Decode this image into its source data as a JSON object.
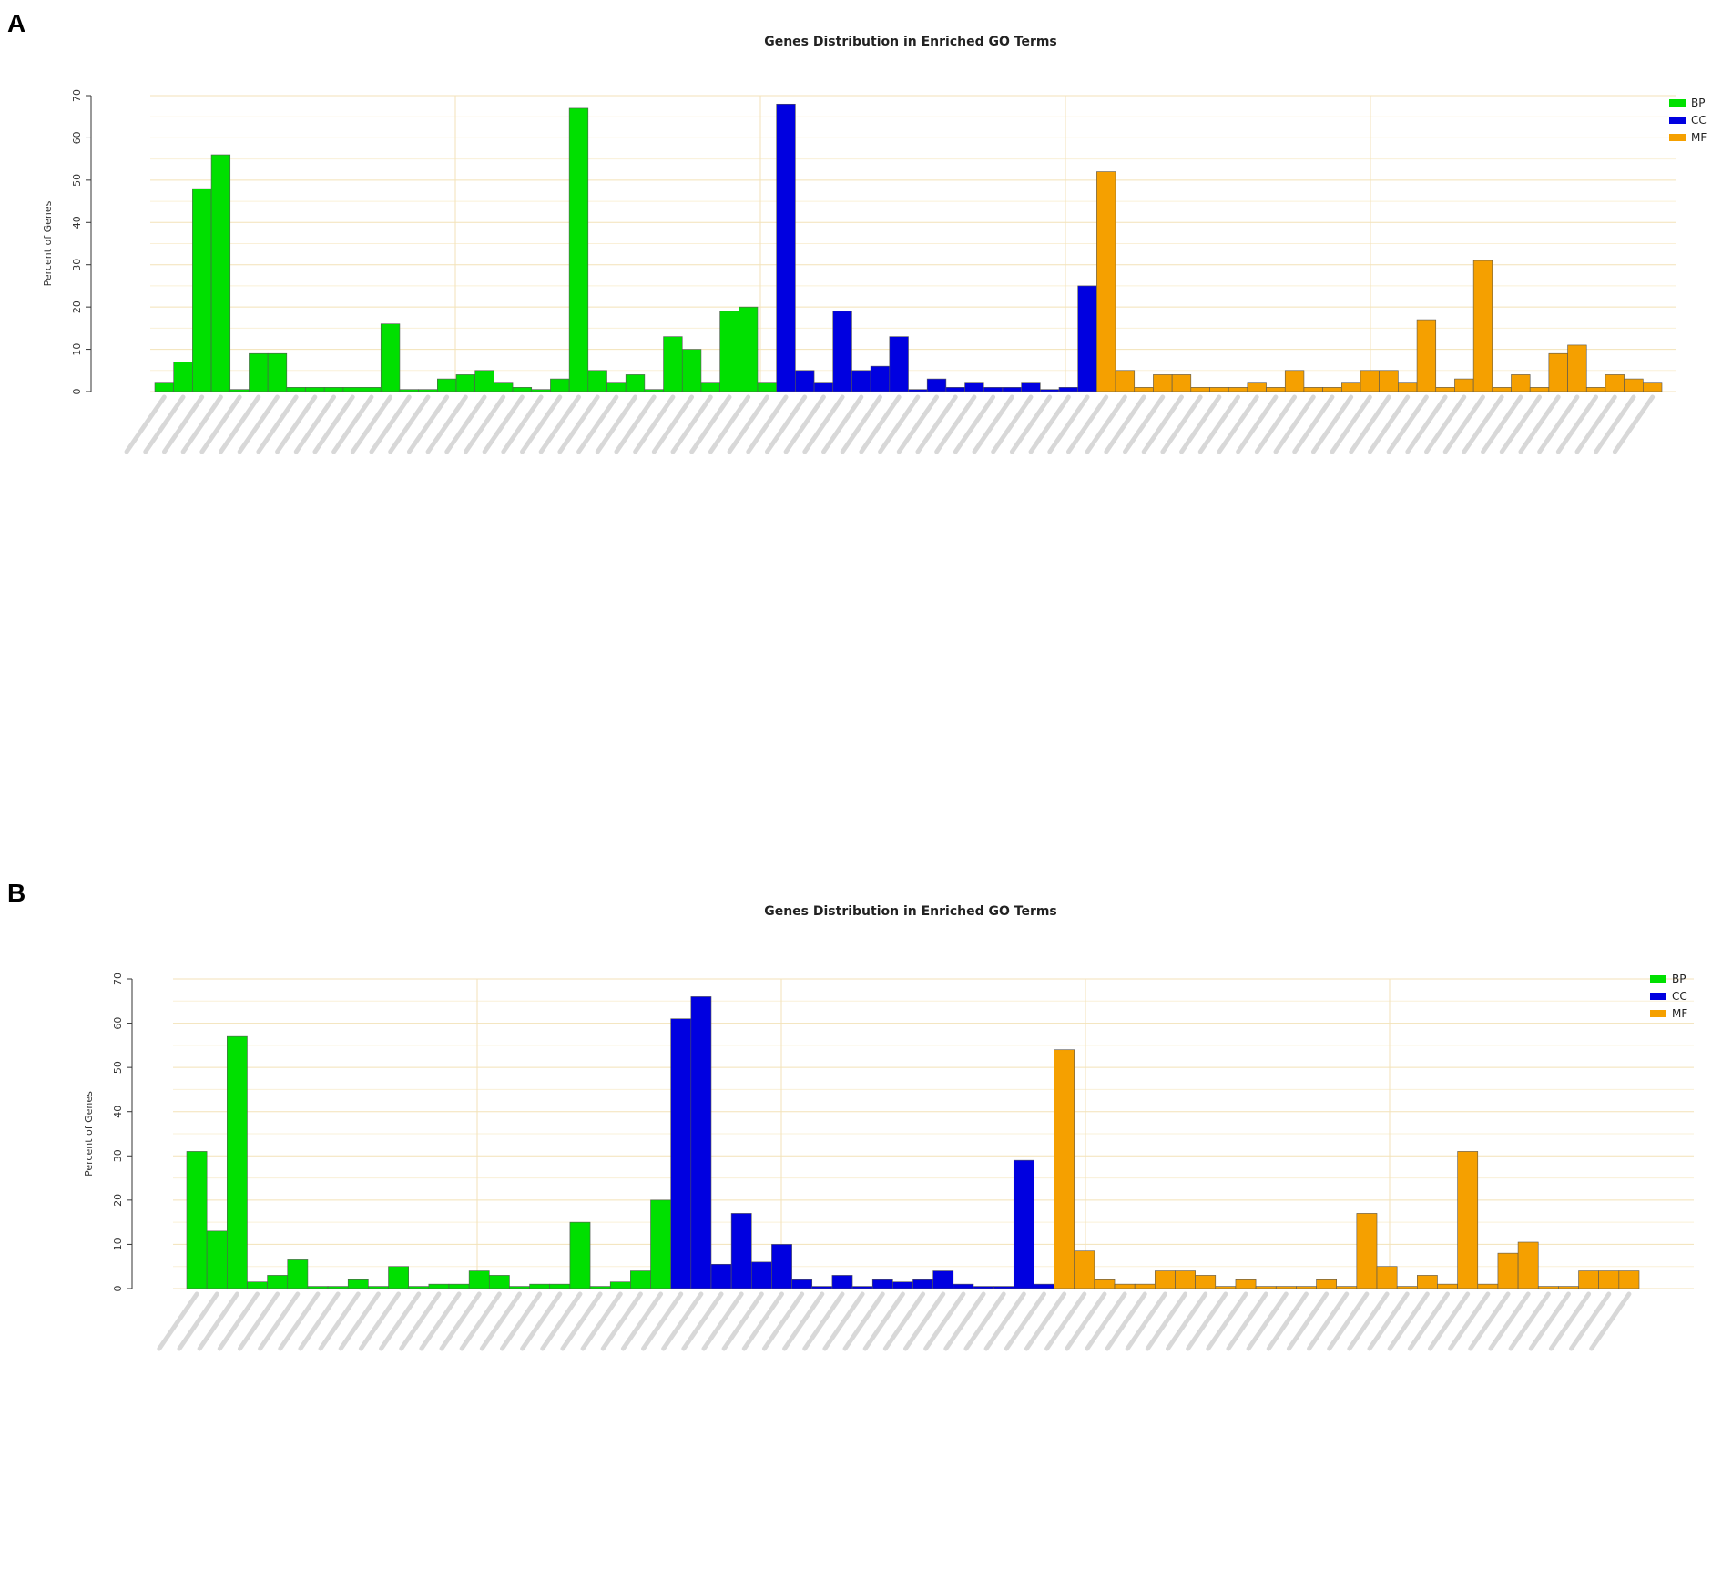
{
  "panels": [
    {
      "letter": "A"
    },
    {
      "letter": "B"
    }
  ],
  "chart_data": [
    {
      "type": "bar",
      "title": "Genes Distribution in Enriched GO Terms",
      "ylabel": "Percent of Genes",
      "ylim": [
        0,
        70
      ],
      "yticks": [
        0,
        10,
        20,
        30,
        40,
        50,
        60,
        70
      ],
      "grid": true,
      "legend_position": "top-right",
      "colors": {
        "BP": "#00e000",
        "CC": "#0000e0",
        "MF": "#f5a000"
      },
      "series": [
        {
          "name": "BP",
          "values": [
            2,
            7,
            48,
            56,
            0.5,
            9,
            9,
            1,
            1,
            1,
            1,
            1,
            16,
            0.5,
            0.5,
            3,
            4,
            5,
            2,
            1,
            0.5,
            3,
            67,
            5,
            2,
            4,
            0.5,
            13,
            10,
            2,
            19,
            20,
            2
          ]
        },
        {
          "name": "CC",
          "values": [
            68,
            5,
            2,
            19,
            5,
            6,
            13,
            0.5,
            3,
            1,
            2,
            1,
            1,
            2,
            0.5,
            1,
            25
          ]
        },
        {
          "name": "MF",
          "values": [
            52,
            5,
            1,
            4,
            4,
            1,
            1,
            1,
            2,
            1,
            5,
            1,
            1,
            2,
            5,
            5,
            2,
            17,
            1,
            3,
            31,
            1,
            4,
            1,
            9,
            11,
            1,
            4,
            3,
            2
          ]
        }
      ]
    },
    {
      "type": "bar",
      "title": "Genes Distribution in Enriched GO Terms",
      "ylabel": "Percent of Genes",
      "ylim": [
        0,
        70
      ],
      "yticks": [
        0,
        10,
        20,
        30,
        40,
        50,
        60,
        70
      ],
      "grid": true,
      "legend_position": "top-right",
      "colors": {
        "BP": "#00e000",
        "CC": "#0000e0",
        "MF": "#f5a000"
      },
      "series": [
        {
          "name": "BP",
          "values": [
            31,
            13,
            57,
            1.5,
            3,
            6.5,
            0.5,
            0.5,
            2,
            0.5,
            5,
            0.5,
            1,
            1,
            4,
            3,
            0.5,
            1,
            1,
            15,
            0.5,
            1.5,
            4,
            20
          ]
        },
        {
          "name": "CC",
          "values": [
            61,
            66,
            5.5,
            17,
            6,
            10,
            2,
            0.5,
            3,
            0.5,
            2,
            1.5,
            2,
            4,
            1,
            0.5,
            0.5,
            29,
            1
          ]
        },
        {
          "name": "MF",
          "values": [
            54,
            8.5,
            2,
            1,
            1,
            4,
            4,
            3,
            0.5,
            2,
            0.5,
            0.5,
            0.5,
            2,
            0.5,
            17,
            5,
            0.5,
            3,
            1,
            31,
            1,
            8,
            10.5,
            0.5,
            0.5,
            4,
            4,
            4
          ]
        }
      ]
    }
  ]
}
